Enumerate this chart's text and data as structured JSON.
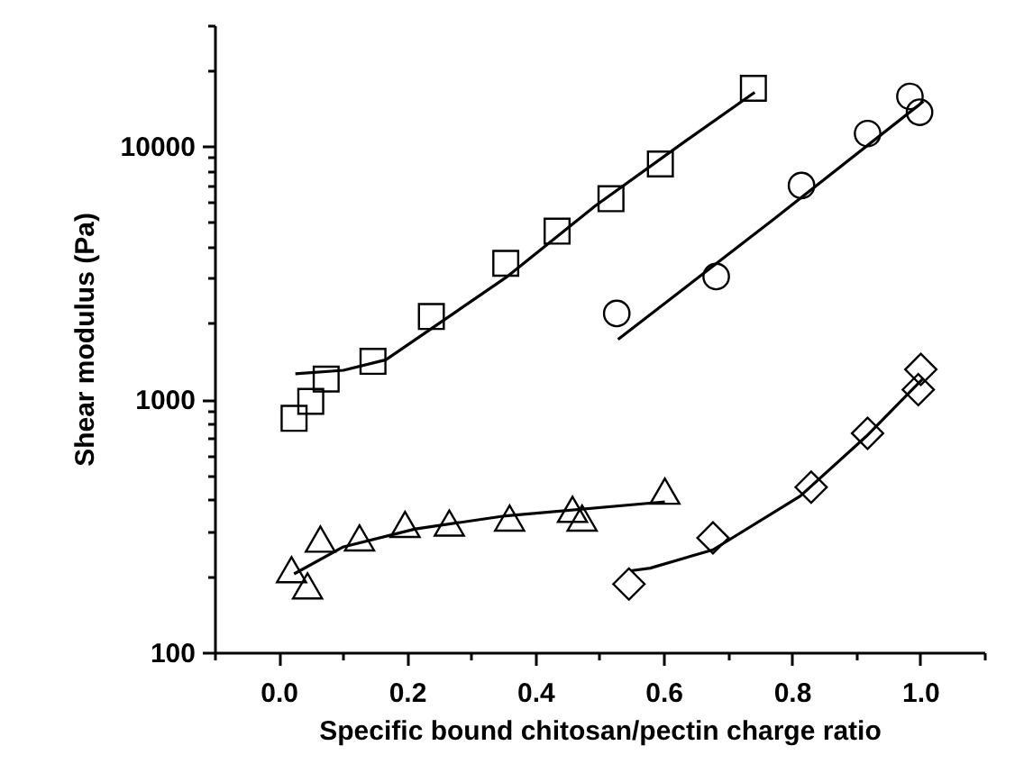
{
  "chart_data": {
    "type": "scatter",
    "xlabel": "Specific bound chitosan/pectin charge ratio",
    "ylabel": "Shear modulus (Pa)",
    "log": "y",
    "grid": false,
    "xlim": [
      -0.1,
      1.1
    ],
    "xticks": [
      {
        "value": -0.1,
        "label": null
      },
      {
        "value": 0,
        "label": "0.0"
      },
      {
        "value": 0.1,
        "label": null
      },
      {
        "value": 0.2,
        "label": "0.2"
      },
      {
        "value": 0.3,
        "label": null
      },
      {
        "value": 0.4,
        "label": "0.4"
      },
      {
        "value": 0.5,
        "label": null
      },
      {
        "value": 0.6,
        "label": "0.6"
      },
      {
        "value": 0.7,
        "label": null
      },
      {
        "value": 0.8,
        "label": "0.8"
      },
      {
        "value": 0.9,
        "label": null
      },
      {
        "value": 1,
        "label": "1.0"
      },
      {
        "value": 1.1,
        "label": null
      }
    ],
    "ylim": [
      100,
      30000
    ],
    "yticks": [
      100,
      {
        "value": 200,
        "label": null
      },
      {
        "value": 300,
        "label": null
      },
      {
        "value": 400,
        "label": null
      },
      {
        "value": 500,
        "label": null
      },
      {
        "value": 600,
        "label": null
      },
      {
        "value": 700,
        "label": null
      },
      {
        "value": 800,
        "label": null
      },
      {
        "value": 900,
        "label": null
      },
      1000,
      {
        "value": 2000,
        "label": null
      },
      {
        "value": 3000,
        "label": null
      },
      {
        "value": 4000,
        "label": null
      },
      {
        "value": 5000,
        "label": null
      },
      {
        "value": 6000,
        "label": null
      },
      {
        "value": 7000,
        "label": null
      },
      {
        "value": 8000,
        "label": null
      },
      {
        "value": 9000,
        "label": null
      },
      10000,
      {
        "value": 20000,
        "label": null
      },
      {
        "value": 30000,
        "label": null
      }
    ],
    "series": [
      {
        "type": "scatter",
        "marker": "square",
        "color": "#000000",
        "x": [
          0.024,
          0.05,
          0.074,
          0.147,
          0.238,
          0.354,
          0.434,
          0.518,
          0.595,
          0.74
        ],
        "values": [
          840,
          980,
          1200,
          1410,
          2120,
          3440,
          4610,
          6190,
          8490,
          16900
        ]
      },
      {
        "type": "line",
        "color": "#000000",
        "x": [
          0.026,
          0.101,
          0.167,
          0.354,
          0.494,
          0.635,
          0.742
        ],
        "values": [
          1260,
          1300,
          1430,
          3020,
          5810,
          10500,
          16300
        ]
      },
      {
        "type": "scatter",
        "marker": "circle",
        "color": "#000000",
        "x": [
          0.527,
          0.682,
          0.815,
          0.918,
          0.984,
          0.999
        ],
        "values": [
          2180,
          3050,
          6980,
          11200,
          15700,
          13600
        ]
      },
      {
        "type": "line",
        "color": "#000000",
        "x": [
          0.529,
          0.77,
          1.005
        ],
        "values": [
          1720,
          5100,
          15000
        ]
      },
      {
        "type": "scatter",
        "marker": "triangle",
        "color": "#000000",
        "x": [
          0.02,
          0.045,
          0.065,
          0.126,
          0.197,
          0.266,
          0.36,
          0.458,
          0.473,
          0.602
        ],
        "values": [
          212,
          183,
          280,
          283,
          320,
          324,
          339,
          367,
          339,
          433
        ]
      },
      {
        "type": "line",
        "color": "#000000",
        "x": [
          0.024,
          0.101,
          0.213,
          0.354,
          0.602
        ],
        "values": [
          204,
          261,
          307,
          346,
          393
        ]
      },
      {
        "type": "scatter",
        "marker": "diamond",
        "color": "#000000",
        "x": [
          0.546,
          0.677,
          0.83,
          0.918,
          0.997,
          1.001
        ],
        "values": [
          186,
          283,
          449,
          733,
          1090,
          1310
        ]
      },
      {
        "type": "line",
        "color": "#000000",
        "x": [
          0.549,
          0.579,
          0.677,
          0.813,
          0.916,
          1.005
        ],
        "values": [
          210,
          215,
          254,
          414,
          713,
          1210
        ]
      }
    ]
  }
}
